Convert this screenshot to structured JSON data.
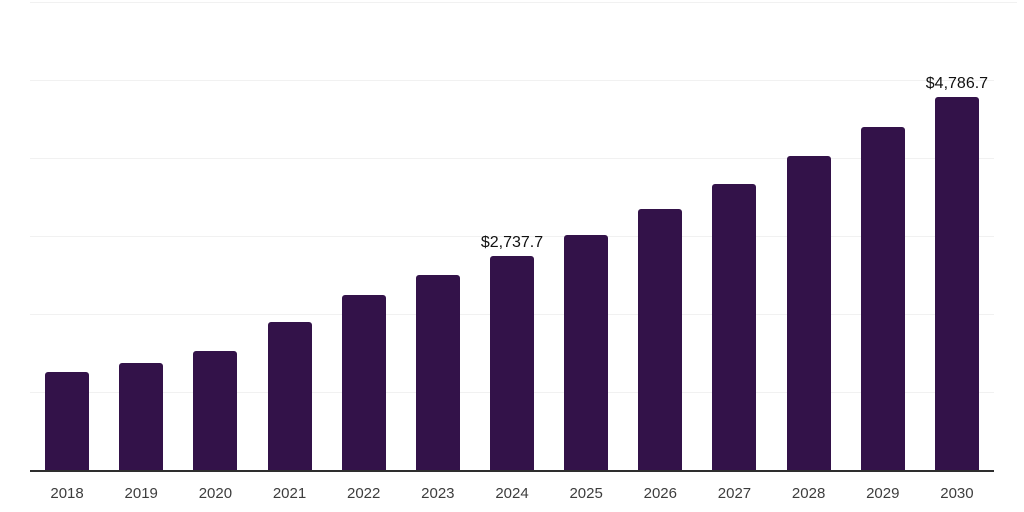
{
  "chart_data": {
    "type": "bar",
    "title": "",
    "xlabel": "",
    "ylabel": "",
    "categories": [
      "2018",
      "2019",
      "2020",
      "2021",
      "2022",
      "2023",
      "2024",
      "2025",
      "2026",
      "2027",
      "2028",
      "2029",
      "2030"
    ],
    "values": [
      1257.3,
      1372.9,
      1526.8,
      1898.8,
      2245.3,
      2501.9,
      2737.7,
      3014.9,
      3348.6,
      3669.4,
      4028.6,
      4400.7,
      4786.7
    ],
    "data_labels": {
      "2024": "$2,737.7",
      "2030": "$4,786.7"
    },
    "ylim": [
      0,
      6000
    ],
    "y_axis_labels_visible": false,
    "grid": {
      "horizontal": true,
      "interval": 1000
    },
    "legend": "none",
    "colors": {
      "bar": "#331249",
      "gridline": "#f1f1f1",
      "axis": "#2e2e2e",
      "tick_label": "#3d3d3d",
      "data_label": "#111111"
    }
  }
}
